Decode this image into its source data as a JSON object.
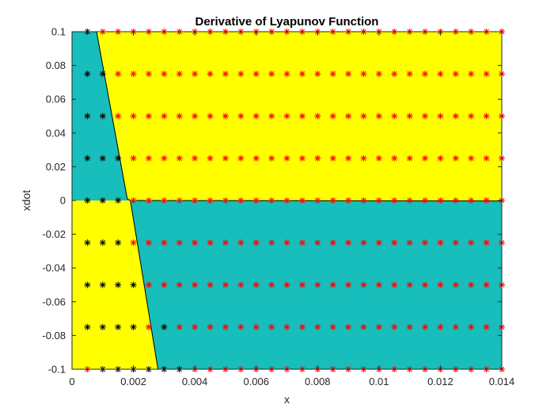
{
  "chart_data": {
    "type": "scatter",
    "title": "Derivative of Lyapunov Function",
    "xlabel": "x",
    "ylabel": "xdot",
    "xlim": [
      0,
      0.014
    ],
    "ylim": [
      -0.1,
      0.1
    ],
    "grid": false,
    "x_ticks": [
      0,
      0.002,
      0.004,
      0.006,
      0.008,
      0.01,
      0.012,
      0.014
    ],
    "x_tick_labels": [
      "0",
      "0.002",
      "0.004",
      "0.006",
      "0.008",
      "0.01",
      "0.012",
      "0.014"
    ],
    "y_ticks": [
      -0.1,
      -0.08,
      -0.06,
      -0.04,
      -0.02,
      0,
      0.02,
      0.04,
      0.06,
      0.08,
      0.1
    ],
    "y_tick_labels": [
      "-0.1",
      "-0.08",
      "-0.06",
      "-0.04",
      "-0.02",
      "0",
      "0.02",
      "0.04",
      "0.06",
      "0.08",
      "0.1"
    ],
    "region_colors": {
      "negative": "#17BEBB",
      "positive": "#FFFF00",
      "boundary": "#000000"
    },
    "boundary_upper": [
      [
        0.0008,
        0.1
      ],
      [
        0.0018,
        0.001
      ],
      [
        0.0019,
        0
      ],
      [
        0.0028,
        -0.1
      ]
    ],
    "boundary_zero": [
      [
        0.0019,
        0
      ],
      [
        0.014,
        -0.0003
      ]
    ],
    "grid_x": [
      0.0005,
      0.001,
      0.0015,
      0.002,
      0.0025,
      0.003,
      0.0035,
      0.004,
      0.0045,
      0.005,
      0.0055,
      0.006,
      0.0065,
      0.007,
      0.0075,
      0.008,
      0.0085,
      0.009,
      0.0095,
      0.01,
      0.0105,
      0.011,
      0.0115,
      0.012,
      0.0125,
      0.013,
      0.0135,
      0.014
    ],
    "grid_y": [
      0.1,
      0.075,
      0.05,
      0.025,
      0,
      -0.025,
      -0.05,
      -0.075,
      -0.1
    ],
    "series": [
      {
        "color": "#000000",
        "marker": "*",
        "points": [
          [
            0.0005,
            0.1
          ],
          [
            0.0005,
            0.075
          ],
          [
            0.001,
            0.075
          ],
          [
            0.0005,
            0.05
          ],
          [
            0.001,
            0.05
          ],
          [
            0.0005,
            0.025
          ],
          [
            0.001,
            0.025
          ],
          [
            0.0015,
            0.025
          ],
          [
            0.0005,
            0
          ],
          [
            0.001,
            0
          ],
          [
            0.0015,
            0
          ],
          [
            0.0005,
            -0.025
          ],
          [
            0.001,
            -0.025
          ],
          [
            0.0015,
            -0.025
          ],
          [
            0.0005,
            -0.05
          ],
          [
            0.001,
            -0.05
          ],
          [
            0.0015,
            -0.05
          ],
          [
            0.002,
            -0.05
          ],
          [
            0.0005,
            -0.075
          ],
          [
            0.001,
            -0.075
          ],
          [
            0.0015,
            -0.075
          ],
          [
            0.002,
            -0.075
          ],
          [
            0.003,
            -0.075
          ],
          [
            0.001,
            -0.1
          ],
          [
            0.0015,
            -0.1
          ],
          [
            0.002,
            -0.1
          ],
          [
            0.0025,
            -0.1
          ],
          [
            0.003,
            -0.1
          ],
          [
            0.0035,
            -0.1
          ]
        ]
      },
      {
        "color": "#FF0000",
        "marker": "*",
        "rule": "all remaining grid points",
        "points": []
      }
    ]
  }
}
